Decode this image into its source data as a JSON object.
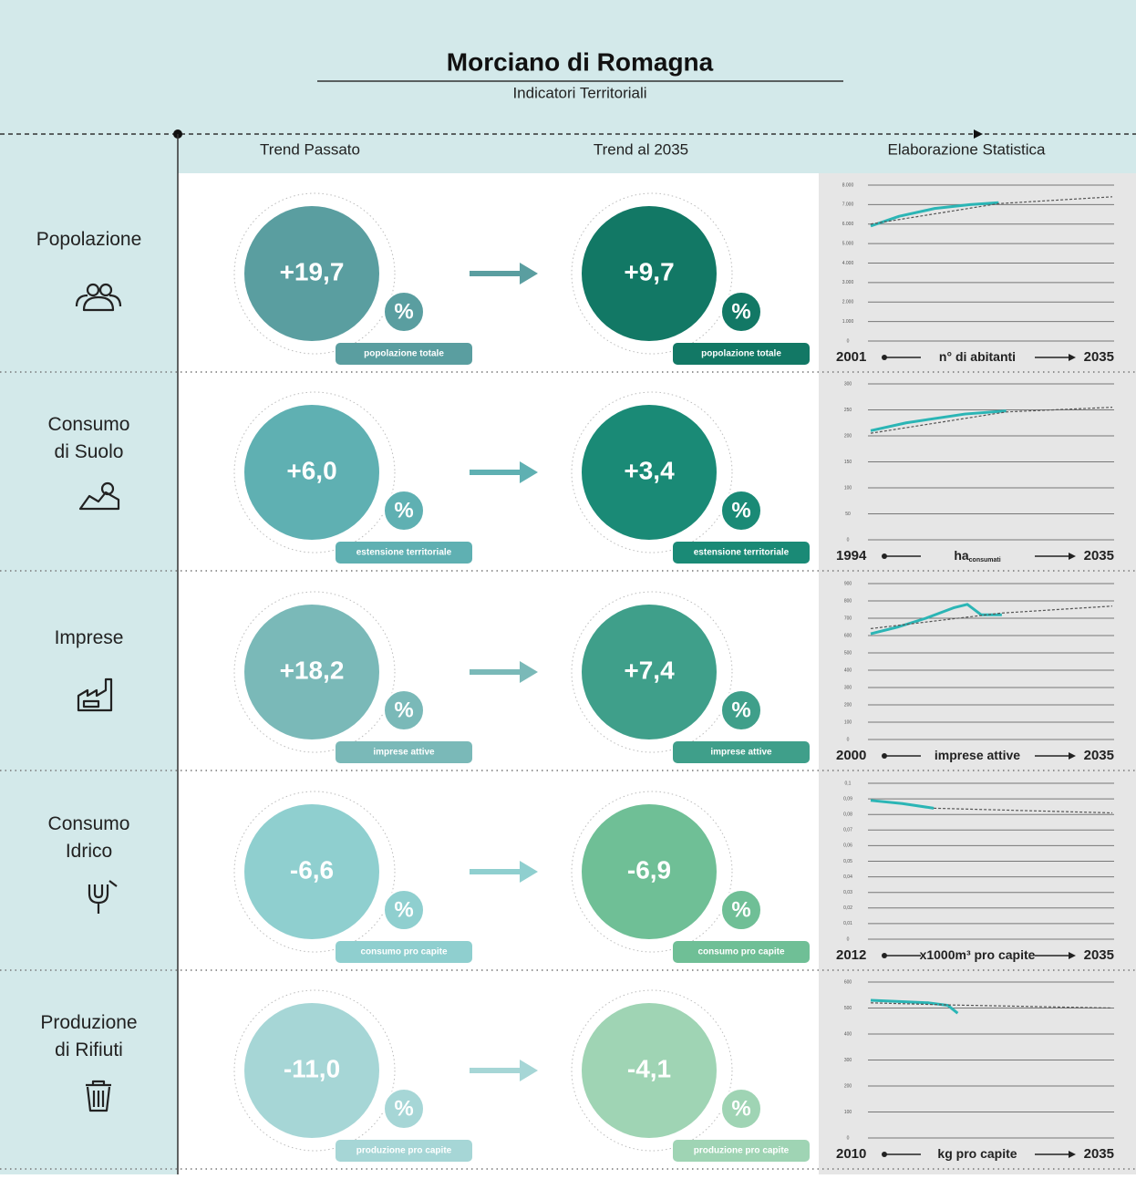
{
  "header": {
    "title": "Morciano di Romagna",
    "subtitle": "Indicatori Territoriali"
  },
  "columns": [
    "Trend Passato",
    "Trend al 2035",
    "Elaborazione Statistica"
  ],
  "rows": [
    {
      "label": "Popolazione",
      "past": {
        "value": "+19,7",
        "unit": "%",
        "caption": "popolazione totale",
        "color": "#5a9ea0"
      },
      "future": {
        "value": "+9,7",
        "unit": "%",
        "caption": "popolazione totale",
        "color": "#127865"
      },
      "chart": {
        "type": "line",
        "xlim": [
          2001,
          2035
        ],
        "unit_label": "n° di abitanti",
        "ylim": [
          0,
          8000
        ],
        "yticks": [
          0,
          {
            "value": 1000,
            "label": "1.000"
          },
          {
            "value": 2000,
            "label": "2.000"
          },
          {
            "value": 3000,
            "label": "3.000"
          },
          {
            "value": 4000,
            "label": "4.000"
          },
          {
            "value": 5000,
            "label": "5.000"
          },
          {
            "value": 6000,
            "label": "6.000"
          },
          {
            "value": 7000,
            "label": "7.000"
          },
          {
            "value": 8000,
            "label": "8.000"
          }
        ],
        "series": [
          {
            "color": "#2bb5b5",
            "dashed": false,
            "x": [
              2001,
              2005,
              2010,
              2015,
              2019
            ],
            "values": [
              5900,
              6400,
              6800,
              7000,
              7100
            ]
          },
          {
            "color": "#555555",
            "dashed": true,
            "x": [
              2001,
              2019,
              2035
            ],
            "values": [
              6000,
              7050,
              7400
            ]
          }
        ]
      }
    },
    {
      "label": "Consumo\ndi Suolo",
      "past": {
        "value": "+6,0",
        "unit": "%",
        "caption": "estensione territoriale",
        "color": "#5fb0b2"
      },
      "future": {
        "value": "+3,4",
        "unit": "%",
        "caption": "estensione territoriale",
        "color": "#1a8a76"
      },
      "chart": {
        "type": "line",
        "xlim": [
          1994,
          2035
        ],
        "unit_label": "ha",
        "unit_sub": "consumati",
        "ylim": [
          0,
          300
        ],
        "yticks": [
          0,
          50,
          100,
          150,
          200,
          250,
          300
        ],
        "series": [
          {
            "color": "#2bb5b5",
            "dashed": false,
            "x": [
              1994,
              2000,
              2010,
              2017
            ],
            "values": [
              210,
              225,
              242,
              248
            ]
          },
          {
            "color": "#555555",
            "dashed": true,
            "x": [
              1994,
              2017,
              2035
            ],
            "values": [
              205,
              246,
              255
            ]
          }
        ]
      }
    },
    {
      "label": "Imprese",
      "past": {
        "value": "+18,2",
        "unit": "%",
        "caption": "imprese attive",
        "color": "#7ab9b8"
      },
      "future": {
        "value": "+7,4",
        "unit": "%",
        "caption": "imprese attive",
        "color": "#3f9f8a"
      },
      "chart": {
        "type": "line",
        "xlim": [
          2000,
          2035
        ],
        "unit_label": "imprese attive",
        "ylim": [
          0,
          900
        ],
        "yticks": [
          0,
          100,
          200,
          300,
          400,
          500,
          600,
          700,
          800,
          900
        ],
        "series": [
          {
            "color": "#2bb5b5",
            "dashed": false,
            "x": [
              2000,
              2004,
              2008,
              2012,
              2014,
              2016,
              2019
            ],
            "values": [
              610,
              650,
              700,
              760,
              780,
              720,
              720
            ]
          },
          {
            "color": "#555555",
            "dashed": true,
            "x": [
              2000,
              2019,
              2035
            ],
            "values": [
              640,
              730,
              770
            ]
          }
        ]
      }
    },
    {
      "label": "Consumo\nIdrico",
      "past": {
        "value": "-6,6",
        "unit": "%",
        "caption": "consumo pro capite",
        "color": "#8fcfcf"
      },
      "future": {
        "value": "-6,9",
        "unit": "%",
        "caption": "consumo pro capite",
        "color": "#6fbf96"
      },
      "chart": {
        "type": "line",
        "xlim": [
          2012,
          2035
        ],
        "unit_label": "x1000m³ pro capite",
        "ylim": [
          0,
          0.1
        ],
        "yticks": [
          0,
          {
            "value": 0.01,
            "label": "0,01"
          },
          {
            "value": 0.02,
            "label": "0,02"
          },
          {
            "value": 0.03,
            "label": "0,03"
          },
          {
            "value": 0.04,
            "label": "0,04"
          },
          {
            "value": 0.05,
            "label": "0,05"
          },
          {
            "value": 0.06,
            "label": "0,06"
          },
          {
            "value": 0.07,
            "label": "0,07"
          },
          {
            "value": 0.08,
            "label": "0,08"
          },
          {
            "value": 0.09,
            "label": "0,09"
          },
          {
            "value": 0.1,
            "label": "0,1"
          }
        ],
        "series": [
          {
            "color": "#2bb5b5",
            "dashed": false,
            "x": [
              2012,
              2015,
              2018
            ],
            "values": [
              0.089,
              0.087,
              0.084
            ]
          },
          {
            "color": "#555555",
            "dashed": true,
            "x": [
              2018,
              2035
            ],
            "values": [
              0.084,
              0.081
            ]
          }
        ]
      }
    },
    {
      "label": "Produzione\ndi Rifiuti",
      "past": {
        "value": "-11,0",
        "unit": "%",
        "caption": "produzione pro capite",
        "color": "#a6d6d6"
      },
      "future": {
        "value": "-4,1",
        "unit": "%",
        "caption": "produzione pro capite",
        "color": "#9fd4b4"
      },
      "chart": {
        "type": "line",
        "xlim": [
          2010,
          2035
        ],
        "unit_label": "kg pro capite",
        "ylim": [
          0,
          600
        ],
        "yticks": [
          0,
          100,
          200,
          300,
          400,
          500,
          600
        ],
        "series": [
          {
            "color": "#2bb5b5",
            "dashed": false,
            "x": [
              2010,
              2013,
              2016,
              2018,
              2019
            ],
            "values": [
              530,
              525,
              520,
              510,
              480
            ]
          },
          {
            "color": "#555555",
            "dashed": true,
            "x": [
              2010,
              2018,
              2035
            ],
            "values": [
              520,
              512,
              500
            ]
          }
        ]
      }
    }
  ]
}
